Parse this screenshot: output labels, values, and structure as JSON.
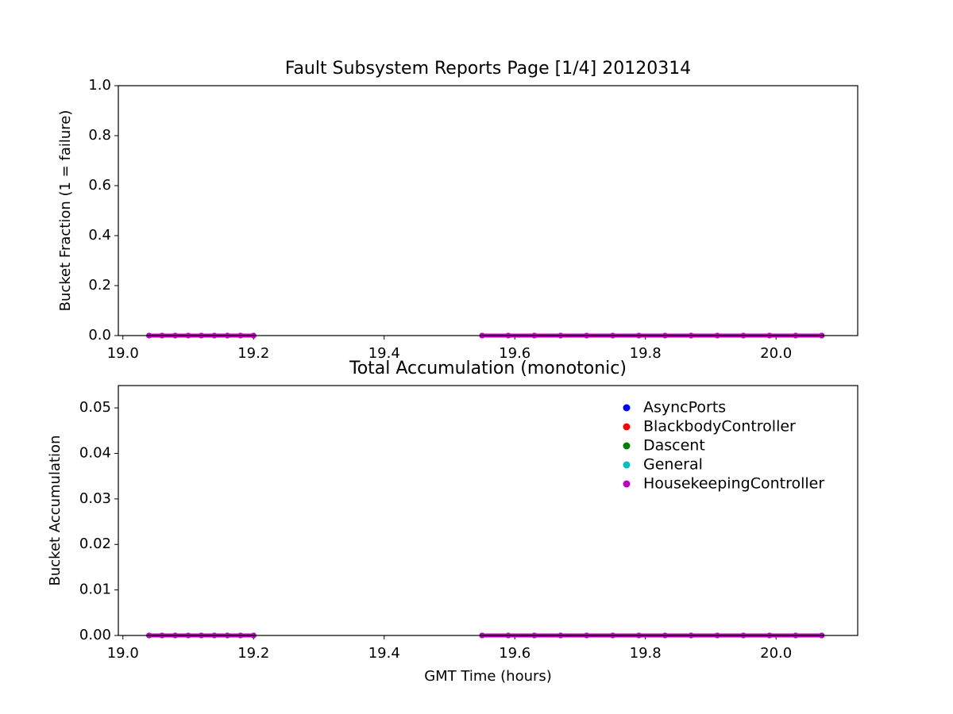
{
  "chart_data": [
    {
      "type": "line",
      "title": "Fault Subsystem Reports Page [1/4] 20120314",
      "y_label": "Bucket Fraction (1 = failure)",
      "x": [
        19.04,
        19.06,
        19.08,
        19.1,
        19.12,
        19.14,
        19.16,
        19.18,
        19.2,
        19.38,
        19.55,
        19.59,
        19.63,
        19.67,
        19.71,
        19.75,
        19.79,
        19.83,
        19.87,
        19.91,
        19.95,
        19.99,
        20.03,
        20.07
      ],
      "series": [
        {
          "color": "#0000ff",
          "values": [
            0,
            0,
            0,
            0,
            0,
            0,
            0,
            0,
            0,
            null,
            0,
            0,
            0,
            0,
            0,
            0,
            0,
            0,
            0,
            0,
            0,
            0,
            0,
            0
          ]
        },
        {
          "color": "#ff0000",
          "values": [
            0,
            0,
            0,
            0,
            0,
            0,
            0,
            0,
            0,
            null,
            0,
            0,
            0,
            0,
            0,
            0,
            0,
            0,
            0,
            0,
            0,
            0,
            0,
            0
          ]
        },
        {
          "color": "#008000",
          "values": [
            0,
            0,
            0,
            0,
            0,
            0,
            0,
            0,
            0,
            null,
            0,
            0,
            0,
            0,
            0,
            0,
            0,
            0,
            0,
            0,
            0,
            0,
            0,
            0
          ]
        },
        {
          "color": "#00bfbf",
          "values": [
            0,
            0,
            0,
            0,
            0,
            0,
            0,
            0,
            0,
            null,
            0,
            0,
            0,
            0,
            0,
            0,
            0,
            0,
            0,
            0,
            0,
            0,
            0,
            0
          ]
        },
        {
          "color": "#bf00bf",
          "values": [
            0,
            0,
            0,
            0,
            0,
            0,
            0,
            0,
            0,
            null,
            0,
            0,
            0,
            0,
            0,
            0,
            0,
            0,
            0,
            0,
            0,
            0,
            0,
            0
          ]
        }
      ],
      "xlim": [
        18.993,
        20.125
      ],
      "xticks": [
        {
          "value": 19.0,
          "label": "19.0"
        },
        {
          "value": 19.2,
          "label": "19.2"
        },
        {
          "value": 19.4,
          "label": "19.4"
        },
        {
          "value": 19.6,
          "label": "19.6"
        },
        {
          "value": 19.8,
          "label": "19.8"
        },
        {
          "value": 20.0,
          "label": "20.0"
        }
      ],
      "ylim": [
        0,
        1
      ],
      "yticks": [
        {
          "value": 0,
          "label": "0.0"
        },
        {
          "value": 0.2,
          "label": "0.2"
        },
        {
          "value": 0.4,
          "label": "0.4"
        },
        {
          "value": 0.6,
          "label": "0.6"
        },
        {
          "value": 0.8,
          "label": "0.8"
        },
        {
          "value": 1,
          "label": "1.0"
        }
      ]
    },
    {
      "type": "line",
      "title": "Total Accumulation (monotonic)",
      "y_label": "Bucket Accumulation",
      "x_label": "GMT Time (hours)",
      "x": [
        19.04,
        19.06,
        19.08,
        19.1,
        19.12,
        19.14,
        19.16,
        19.18,
        19.2,
        19.38,
        19.55,
        19.59,
        19.63,
        19.67,
        19.71,
        19.75,
        19.79,
        19.83,
        19.87,
        19.91,
        19.95,
        19.99,
        20.03,
        20.07
      ],
      "series": [
        {
          "name": "AsyncPorts",
          "color": "#0000ff",
          "values": [
            0,
            0,
            0,
            0,
            0,
            0,
            0,
            0,
            0,
            null,
            0,
            0,
            0,
            0,
            0,
            0,
            0,
            0,
            0,
            0,
            0,
            0,
            0,
            0
          ]
        },
        {
          "name": "BlackbodyController",
          "color": "#ff0000",
          "values": [
            0,
            0,
            0,
            0,
            0,
            0,
            0,
            0,
            0,
            null,
            0,
            0,
            0,
            0,
            0,
            0,
            0,
            0,
            0,
            0,
            0,
            0,
            0,
            0
          ]
        },
        {
          "name": "Dascent",
          "color": "#008000",
          "values": [
            0,
            0,
            0,
            0,
            0,
            0,
            0,
            0,
            0,
            null,
            0,
            0,
            0,
            0,
            0,
            0,
            0,
            0,
            0,
            0,
            0,
            0,
            0,
            0
          ]
        },
        {
          "name": "General",
          "color": "#00bfbf",
          "values": [
            0,
            0,
            0,
            0,
            0,
            0,
            0,
            0,
            0,
            null,
            0,
            0,
            0,
            0,
            0,
            0,
            0,
            0,
            0,
            0,
            0,
            0,
            0,
            0
          ]
        },
        {
          "name": "HousekeepingController",
          "color": "#bf00bf",
          "values": [
            0,
            0,
            0,
            0,
            0,
            0,
            0,
            0,
            0,
            null,
            0,
            0,
            0,
            0,
            0,
            0,
            0,
            0,
            0,
            0,
            0,
            0,
            0,
            0
          ]
        }
      ],
      "legend": "upper right",
      "xlim": [
        18.993,
        20.125
      ],
      "xticks": [
        {
          "value": 19.0,
          "label": "19.0"
        },
        {
          "value": 19.2,
          "label": "19.2"
        },
        {
          "value": 19.4,
          "label": "19.4"
        },
        {
          "value": 19.6,
          "label": "19.6"
        },
        {
          "value": 19.8,
          "label": "19.8"
        },
        {
          "value": 20.0,
          "label": "20.0"
        }
      ],
      "ylim": [
        0,
        0.0549
      ],
      "yticks": [
        {
          "value": 0,
          "label": "0.00"
        },
        {
          "value": 0.01,
          "label": "0.01"
        },
        {
          "value": 0.02,
          "label": "0.02"
        },
        {
          "value": 0.03,
          "label": "0.03"
        },
        {
          "value": 0.04,
          "label": "0.04"
        },
        {
          "value": 0.05,
          "label": "0.05"
        }
      ]
    }
  ]
}
